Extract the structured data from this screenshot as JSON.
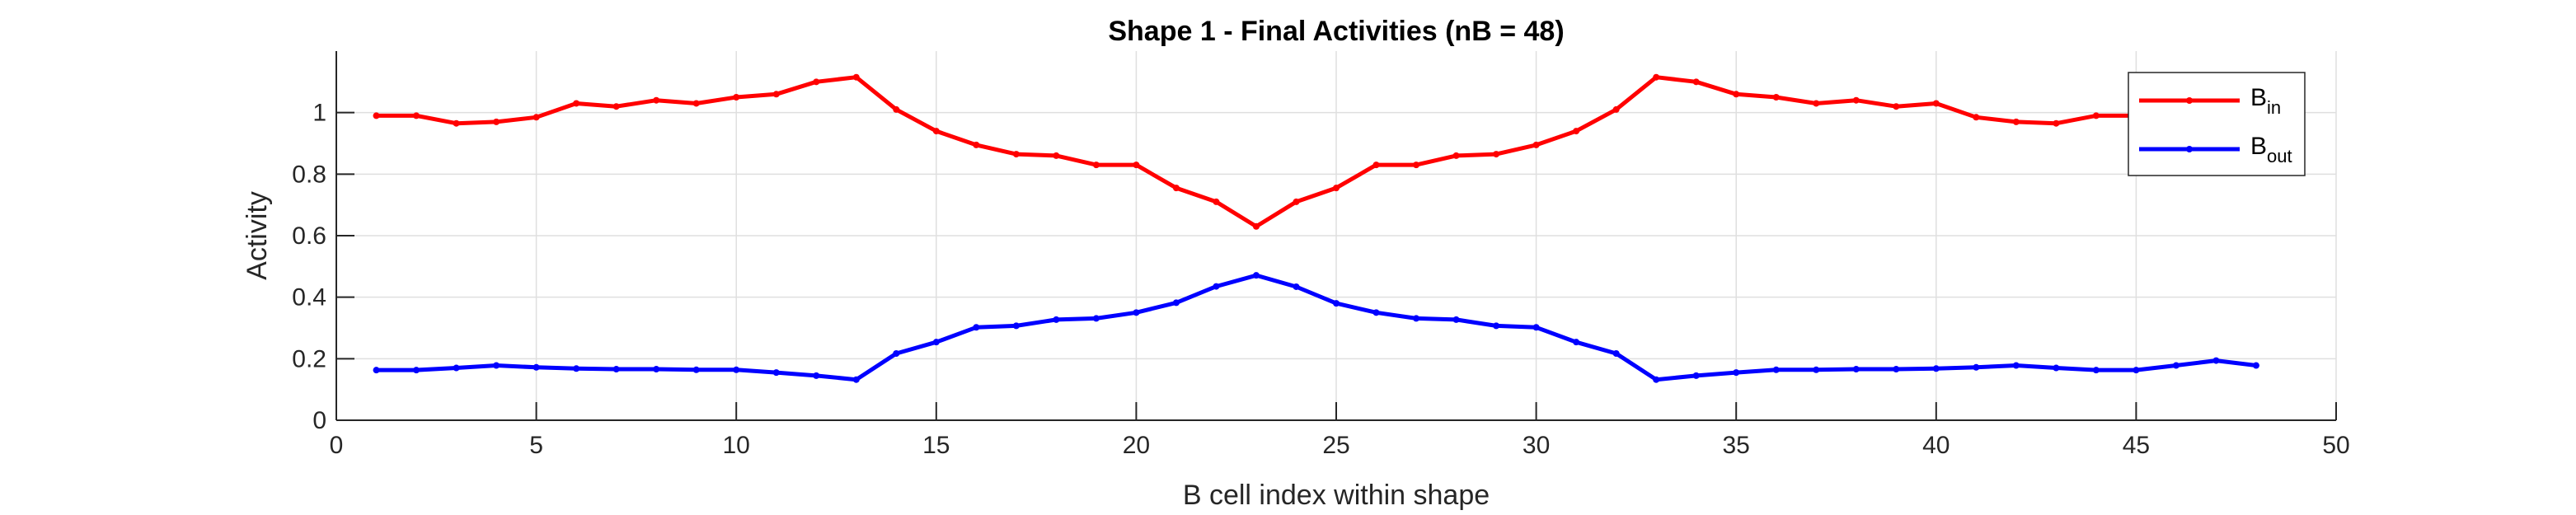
{
  "chart_data": {
    "type": "line",
    "title": "Shape 1 - Final Activities (nB = 48)",
    "xlabel": "B cell index within shape",
    "ylabel": "Activity",
    "xlim": [
      0,
      50
    ],
    "ylim": [
      0,
      1.2
    ],
    "xticks": [
      0,
      5,
      10,
      15,
      20,
      25,
      30,
      35,
      40,
      45,
      50
    ],
    "yticks": [
      0,
      0.2,
      0.4,
      0.6,
      0.8,
      1
    ],
    "grid": true,
    "legend_position": "top-right",
    "x": [
      1,
      2,
      3,
      4,
      5,
      6,
      7,
      8,
      9,
      10,
      11,
      12,
      13,
      14,
      15,
      16,
      17,
      18,
      19,
      20,
      21,
      22,
      23,
      24,
      25,
      26,
      27,
      28,
      29,
      30,
      31,
      32,
      33,
      34,
      35,
      36,
      37,
      38,
      39,
      40,
      41,
      42,
      43,
      44,
      45,
      46,
      47,
      48
    ],
    "series": [
      {
        "name": "B_in",
        "label_main": "B",
        "label_sub": "in",
        "color": "#ff0000",
        "values": [
          0.99,
          0.99,
          0.965,
          0.97,
          0.985,
          1.03,
          1.02,
          1.04,
          1.03,
          1.05,
          1.06,
          1.1,
          1.115,
          1.01,
          0.94,
          0.895,
          0.865,
          0.86,
          0.83,
          0.83,
          0.755,
          0.71,
          0.63,
          0.71,
          0.755,
          0.83,
          0.83,
          0.86,
          0.865,
          0.895,
          0.94,
          1.01,
          1.115,
          1.1,
          1.06,
          1.05,
          1.03,
          1.04,
          1.02,
          1.03,
          0.985,
          0.97,
          0.965,
          0.99,
          0.99,
          null,
          null,
          null
        ]
      },
      {
        "name": "B_out",
        "label_main": "B",
        "label_sub": "out",
        "color": "#0000ff",
        "values": [
          0.163,
          0.163,
          0.17,
          0.178,
          0.172,
          0.168,
          0.166,
          0.166,
          0.164,
          0.164,
          0.155,
          0.145,
          0.132,
          0.217,
          0.254,
          0.302,
          0.307,
          0.327,
          0.331,
          0.35,
          0.382,
          0.435,
          0.471,
          0.434,
          0.38,
          0.35,
          0.331,
          0.327,
          0.307,
          0.302,
          0.254,
          0.217,
          0.132,
          0.145,
          0.155,
          0.164,
          0.164,
          0.166,
          0.166,
          0.168,
          0.172,
          0.178,
          0.17,
          0.163,
          0.163,
          0.178,
          0.194,
          0.178
        ]
      }
    ]
  }
}
